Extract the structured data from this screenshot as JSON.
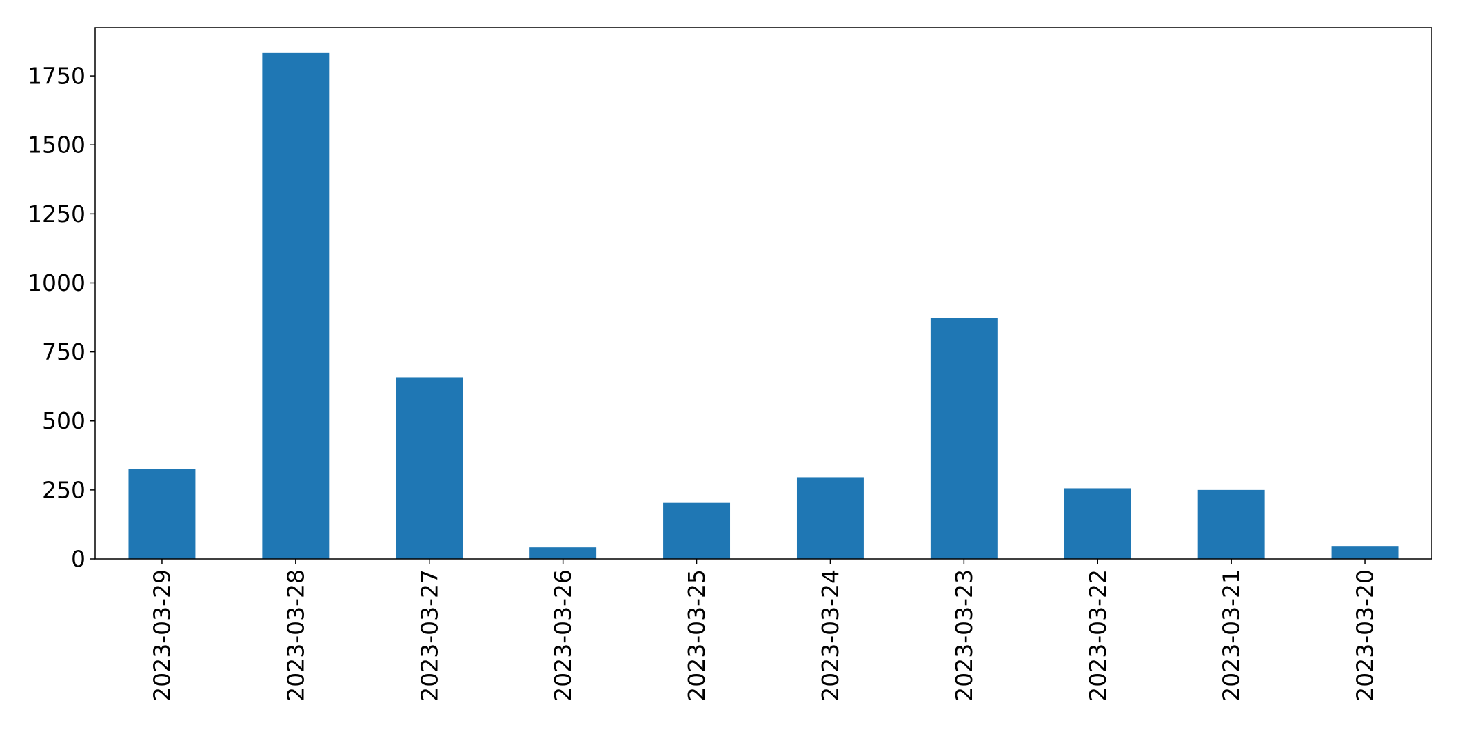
{
  "chart_data": {
    "type": "bar",
    "title": "",
    "xlabel": "",
    "ylabel": "",
    "categories": [
      "2023-03-29",
      "2023-03-28",
      "2023-03-27",
      "2023-03-26",
      "2023-03-25",
      "2023-03-24",
      "2023-03-23",
      "2023-03-22",
      "2023-03-21",
      "2023-03-20"
    ],
    "values": [
      325,
      1833,
      658,
      42,
      203,
      296,
      872,
      256,
      250,
      47
    ],
    "ylim": [
      0,
      1925
    ],
    "yticks": [
      0,
      250,
      500,
      750,
      1000,
      1250,
      1500,
      1750
    ],
    "x_tick_rotation": "vertical",
    "grid": false,
    "legend": "none",
    "bar_color": "#1f77b4",
    "axis_color": "#000000"
  }
}
